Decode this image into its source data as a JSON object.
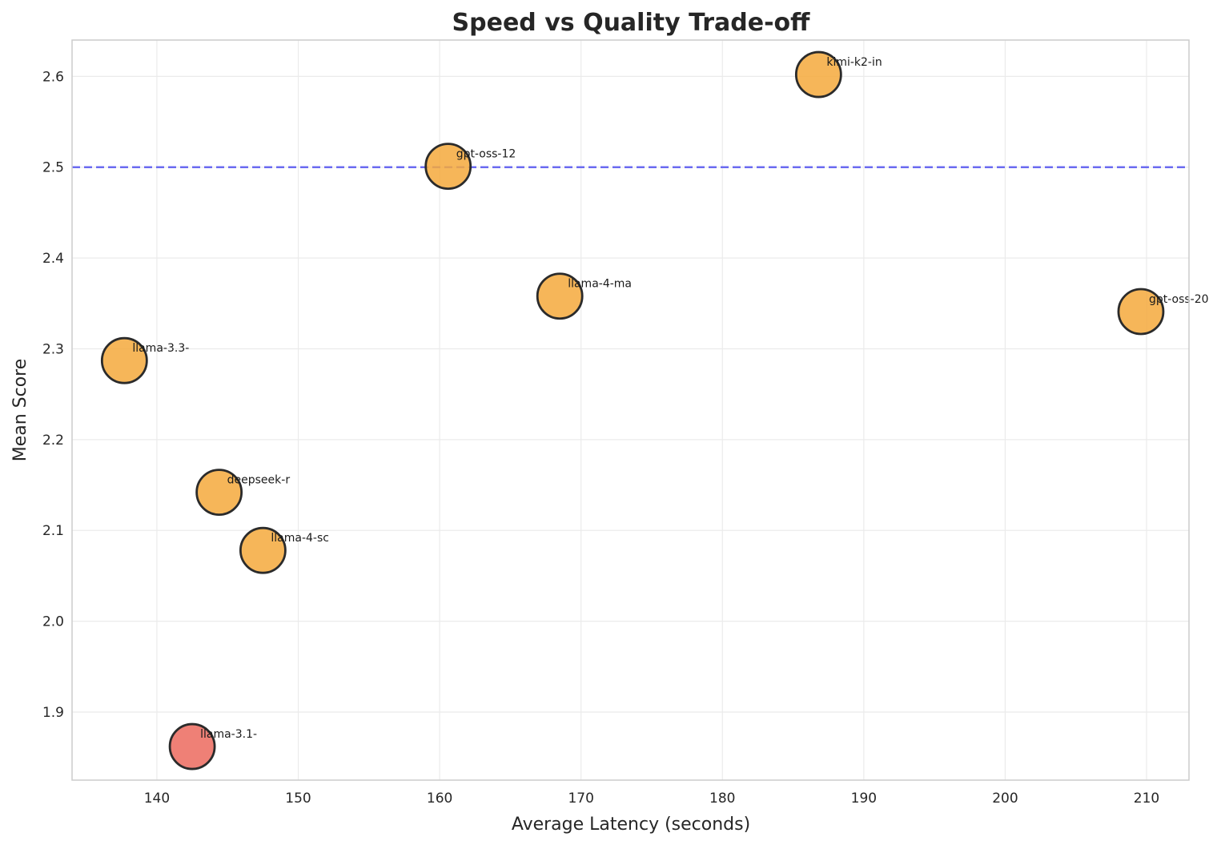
{
  "chart_data": {
    "type": "scatter",
    "title": "Speed vs Quality Trade-off",
    "xlabel": "Average Latency (seconds)",
    "ylabel": "Mean Score",
    "xlim": [
      134,
      213
    ],
    "ylim": [
      1.825,
      2.64
    ],
    "xticks": [
      140,
      150,
      160,
      170,
      180,
      190,
      200,
      210
    ],
    "yticks": [
      1.9,
      2.0,
      2.1,
      2.2,
      2.3,
      2.4,
      2.5,
      2.6
    ],
    "grid": true,
    "reference_line": {
      "axis": "y",
      "value": 2.5,
      "color": "#6b6bf0",
      "style": "dashed"
    },
    "colors": {
      "default": "#f4a93c",
      "low": "#ec6a5e",
      "edge": "#2b2b2b"
    },
    "points": [
      {
        "label": "kimi-k2-in",
        "x": 186.8,
        "y": 2.602,
        "color": "#f4a93c"
      },
      {
        "label": "gpt-oss-12",
        "x": 160.6,
        "y": 2.501,
        "color": "#f4a93c"
      },
      {
        "label": "llama-4-ma",
        "x": 168.5,
        "y": 2.358,
        "color": "#f4a93c"
      },
      {
        "label": "gpt-oss-20",
        "x": 209.6,
        "y": 2.341,
        "color": "#f4a93c"
      },
      {
        "label": "llama-3.3-",
        "x": 137.7,
        "y": 2.287,
        "color": "#f4a93c"
      },
      {
        "label": "deepseek-r",
        "x": 144.4,
        "y": 2.142,
        "color": "#f4a93c"
      },
      {
        "label": "llama-4-sc",
        "x": 147.5,
        "y": 2.078,
        "color": "#f4a93c"
      },
      {
        "label": "llama-3.1-",
        "x": 142.5,
        "y": 1.862,
        "color": "#ec6a5e"
      }
    ]
  }
}
